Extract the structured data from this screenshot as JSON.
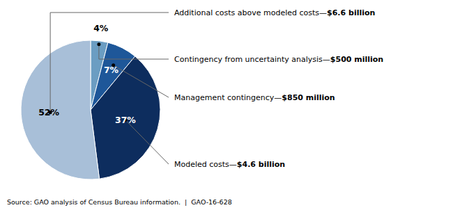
{
  "chart_data": {
    "type": "pie",
    "values": [
      4,
      7,
      37,
      52
    ],
    "value_labels": [
      "4%",
      "7%",
      "37%",
      "52%"
    ],
    "data_labels": true,
    "colors": [
      "#6b9dc2",
      "#1e5799",
      "#0d2d5e",
      "#a8bfd8"
    ],
    "annotations": [
      "Additional costs above modeled costs—$6.6 billion",
      "Contingency from uncertainty analysis—$500 million",
      "Management contingency—$850 million",
      "Modeled costs—$4.6 billion"
    ],
    "source": "Source: GAO analysis of Census Bureau information.  |  GAO-16-628"
  }
}
